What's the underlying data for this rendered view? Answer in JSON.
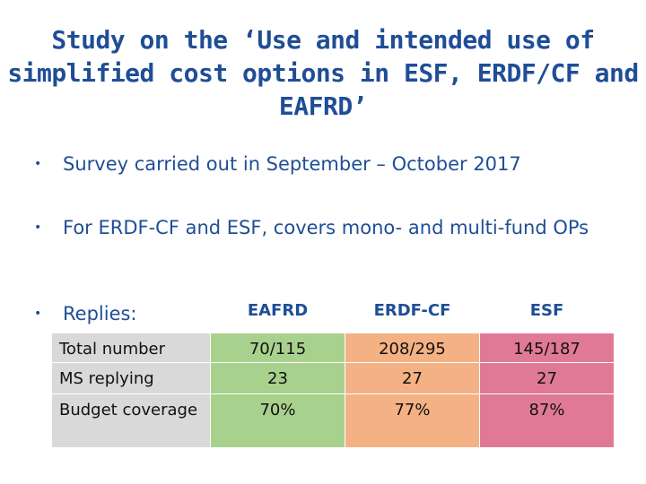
{
  "title": "Study on the ‘Use and intended use of simplified cost options in ESF, ERDF/CF and EAFRD’",
  "bullets": [
    "Survey carried out in September – October 2017",
    "For ERDF-CF and ESF, covers mono- and multi-fund OPs",
    "Replies:"
  ],
  "bullet_glyph": "•",
  "table": {
    "columns": [
      "EAFRD",
      "ERDF-CF",
      "ESF"
    ],
    "rows": [
      {
        "label": "Total number",
        "values": [
          "70/115",
          "208/295",
          "145/187"
        ]
      },
      {
        "label": "MS replying",
        "values": [
          "23",
          "27",
          "27"
        ]
      },
      {
        "label": "Budget coverage",
        "values": [
          "70%",
          "77%",
          "87%"
        ]
      }
    ]
  },
  "colors": {
    "title": "#1f4e96",
    "label_bg": "#d9d9d9",
    "eafrd_bg": "#a9d18e",
    "erdf_bg": "#f4b183",
    "esf_bg": "#e07a94"
  }
}
